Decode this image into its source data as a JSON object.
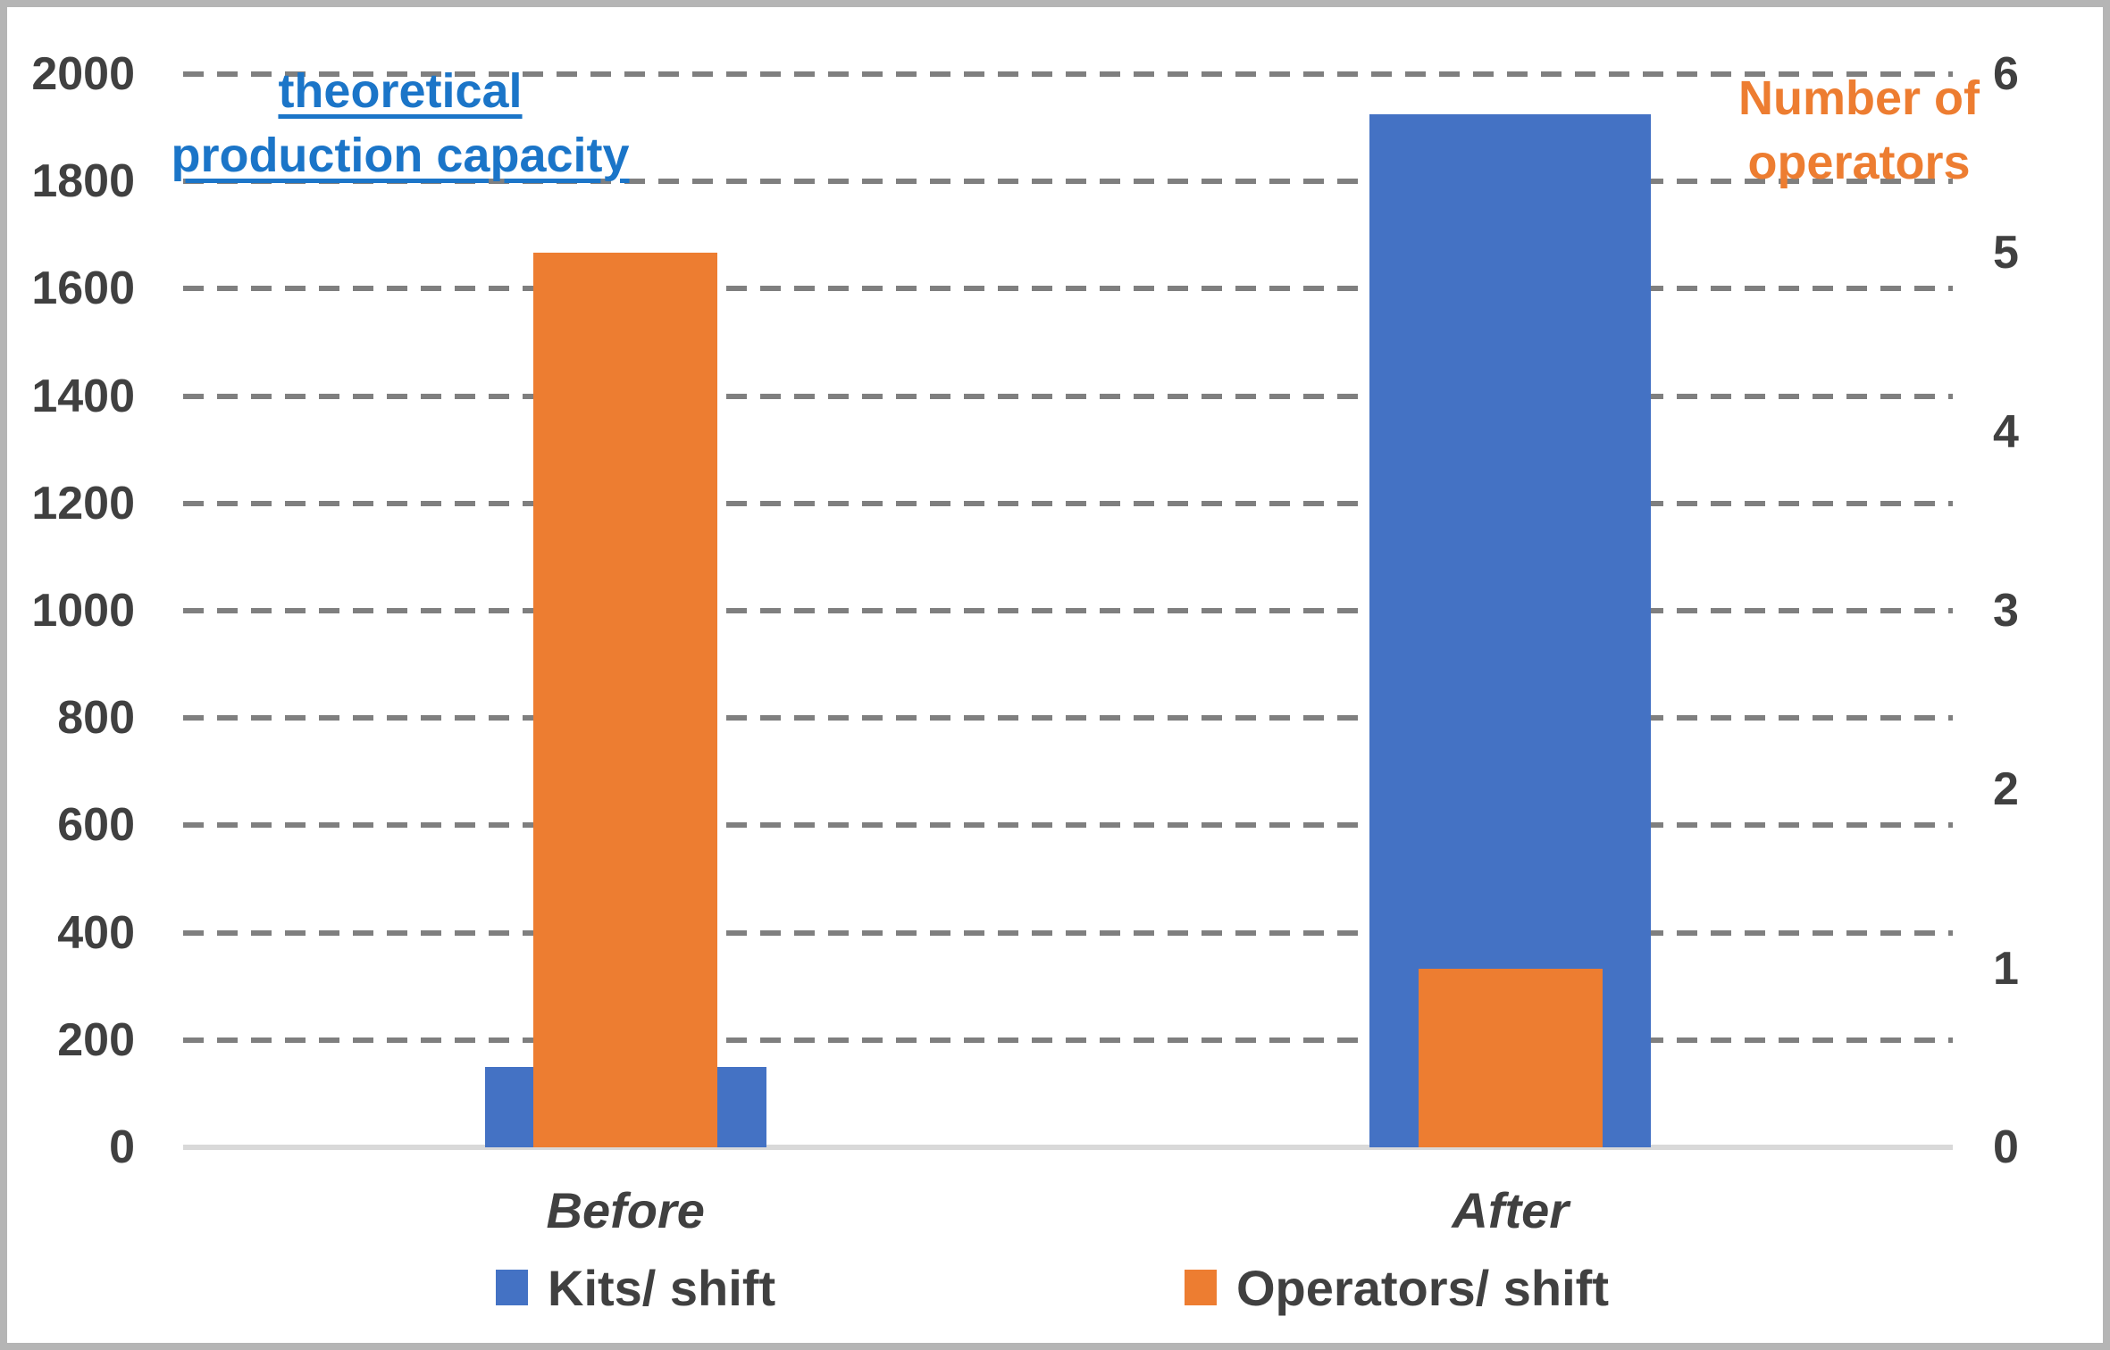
{
  "chart_data": {
    "type": "bar",
    "bar_mode": "overlapped-dual-axis",
    "categories": [
      "Before",
      "After"
    ],
    "series": [
      {
        "name": "Kits/ shift",
        "axis": "left",
        "color": "#4472C4",
        "values": [
          150,
          1925
        ]
      },
      {
        "name": "Operators/ shift",
        "axis": "right",
        "color": "#ED7D31",
        "values": [
          5,
          1
        ]
      }
    ],
    "left_axis": {
      "title": "theoretical production capacity",
      "min": 0,
      "max": 2000,
      "step": 200,
      "ticks": [
        2000,
        1800,
        1600,
        1400,
        1200,
        1000,
        800,
        600,
        400,
        200,
        0
      ]
    },
    "right_axis": {
      "title": "Number of operators",
      "min": 0,
      "max": 6,
      "step": 1,
      "ticks": [
        6,
        5,
        4,
        3,
        2,
        1,
        0
      ]
    },
    "grid": "horizontal-dashed",
    "legend_position": "bottom"
  },
  "annotations": {
    "left_axis_label": {
      "line1": "theoretical",
      "line2": "production capacity",
      "color": "#1B75C8"
    },
    "right_axis_label": {
      "line1": "Number of",
      "line2": "operators",
      "color": "#ED7D31"
    }
  },
  "legend": {
    "items": [
      {
        "label": "Kits/ shift",
        "color": "#4472C4"
      },
      {
        "label": "Operators/ shift",
        "color": "#ED7D31"
      }
    ]
  },
  "colors": {
    "kits_bar": "#4472C4",
    "operators_bar": "#ED7D31",
    "gridline": "#7F7F7F",
    "axis_line": "#D9D9D9",
    "tick_text": "#404040",
    "frame_border": "#B5B5B5"
  }
}
